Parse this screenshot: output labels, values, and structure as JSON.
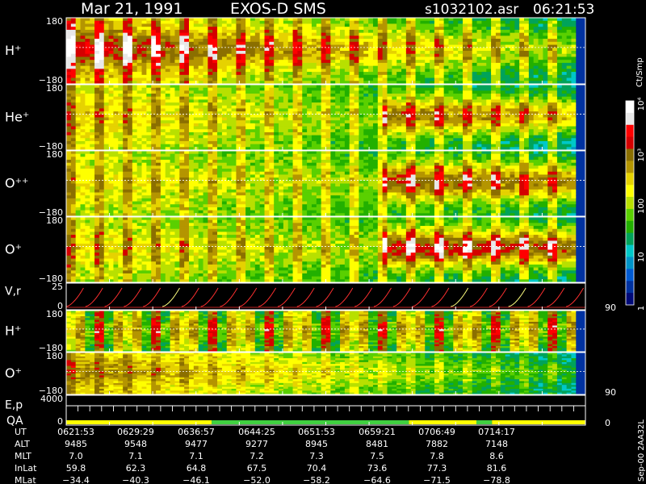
{
  "header": {
    "date": "Mar 21, 1991",
    "instrument": "EXOS-D SMS",
    "file": "s1032102.asr",
    "time": "06:21:53"
  },
  "colorbar": {
    "title": "Ct/Smp",
    "ticks": [
      {
        "label": "1",
        "value": 1
      },
      {
        "label": "10",
        "value": 10
      },
      {
        "label": "100",
        "value": 100
      },
      {
        "label": "10³",
        "value": 1000
      },
      {
        "label": "10⁴",
        "value": 10000
      }
    ],
    "colors": [
      "#ffffff",
      "#e8e8e8",
      "#ff0000",
      "#d40000",
      "#8b6f00",
      "#b49500",
      "#e6d200",
      "#ffff00",
      "#b8e000",
      "#5ad000",
      "#22b000",
      "#00a35a",
      "#00c8c8",
      "#0094c8",
      "#005ad2",
      "#0032a0",
      "#000a78"
    ]
  },
  "chart_data": [
    {
      "type": "heatmap",
      "ylabel": "H⁺",
      "yticks": [
        "180",
        "−180"
      ],
      "ylim": [
        -180,
        180
      ],
      "pattern": "early",
      "peak": 1.0
    },
    {
      "type": "heatmap",
      "ylabel": "He⁺",
      "yticks": [
        "180",
        "−180"
      ],
      "ylim": [
        -180,
        180
      ],
      "pattern": "mid",
      "peak": 0.8
    },
    {
      "type": "heatmap",
      "ylabel": "O⁺⁺",
      "yticks": [
        "180",
        "−180"
      ],
      "ylim": [
        -180,
        180
      ],
      "pattern": "late",
      "peak": 0.85
    },
    {
      "type": "heatmap",
      "ylabel": "O⁺",
      "yticks": [
        "180",
        "−180"
      ],
      "ylim": [
        -180,
        180
      ],
      "pattern": "late",
      "peak": 0.95
    },
    {
      "type": "line",
      "ylabel": "V,r",
      "yticks": [
        "25",
        "0"
      ],
      "right_tick": "90",
      "ylim": [
        0,
        25
      ],
      "sweeps": 27
    },
    {
      "type": "heatmap",
      "ylabel": "H⁺",
      "yticks": [
        "180",
        "−180"
      ],
      "ylim": [
        -180,
        180
      ],
      "pattern": "stripes",
      "peak": 0.75
    },
    {
      "type": "heatmap",
      "ylabel": "O⁺",
      "yticks": [
        "180",
        "−180"
      ],
      "ylim": [
        -180,
        180
      ],
      "right_tick": "90",
      "pattern": "early",
      "peak": 0.45
    },
    {
      "type": "line",
      "ylabel": "E,p",
      "ylabel2": "QA",
      "yticks": [
        "4000",
        "0"
      ],
      "right_tick": "0",
      "ylim": [
        0,
        4000
      ],
      "steps": 44,
      "qa_segments": [
        {
          "from": 0.0,
          "to": 0.28,
          "color": "#ffff00"
        },
        {
          "from": 0.28,
          "to": 0.66,
          "color": "#40d040"
        },
        {
          "from": 0.66,
          "to": 0.79,
          "color": "#ffff00"
        },
        {
          "from": 0.79,
          "to": 0.82,
          "color": "#40d040"
        },
        {
          "from": 0.82,
          "to": 1.0,
          "color": "#ffff00"
        }
      ]
    }
  ],
  "ephemeris": {
    "labels": [
      "UT",
      "ALT",
      "MLT",
      "InLat",
      "MLat"
    ],
    "columns": [
      {
        "UT": "0621:53",
        "ALT": "9485",
        "MLT": "7.0",
        "InLat": "59.8",
        "MLat": "−34.4"
      },
      {
        "UT": "0629:29",
        "ALT": "9548",
        "MLT": "7.1",
        "InLat": "62.3",
        "MLat": "−40.3"
      },
      {
        "UT": "0636:57",
        "ALT": "9477",
        "MLT": "7.1",
        "InLat": "64.8",
        "MLat": "−46.1"
      },
      {
        "UT": "0644:25",
        "ALT": "9277",
        "MLT": "7.2",
        "InLat": "67.5",
        "MLat": "−52.0"
      },
      {
        "UT": "0651:53",
        "ALT": "8945",
        "MLT": "7.3",
        "InLat": "70.4",
        "MLat": "−58.2"
      },
      {
        "UT": "0659:21",
        "ALT": "8481",
        "MLT": "7.5",
        "InLat": "73.6",
        "MLat": "−64.6"
      },
      {
        "UT": "0706:49",
        "ALT": "7882",
        "MLT": "7.8",
        "InLat": "77.3",
        "MLat": "−71.5"
      },
      {
        "UT": "0714:17",
        "ALT": "7148",
        "MLT": "8.6",
        "InLat": "81.6",
        "MLat": "−78.8"
      }
    ]
  },
  "footer_id": "Sep-00 2AA32L"
}
